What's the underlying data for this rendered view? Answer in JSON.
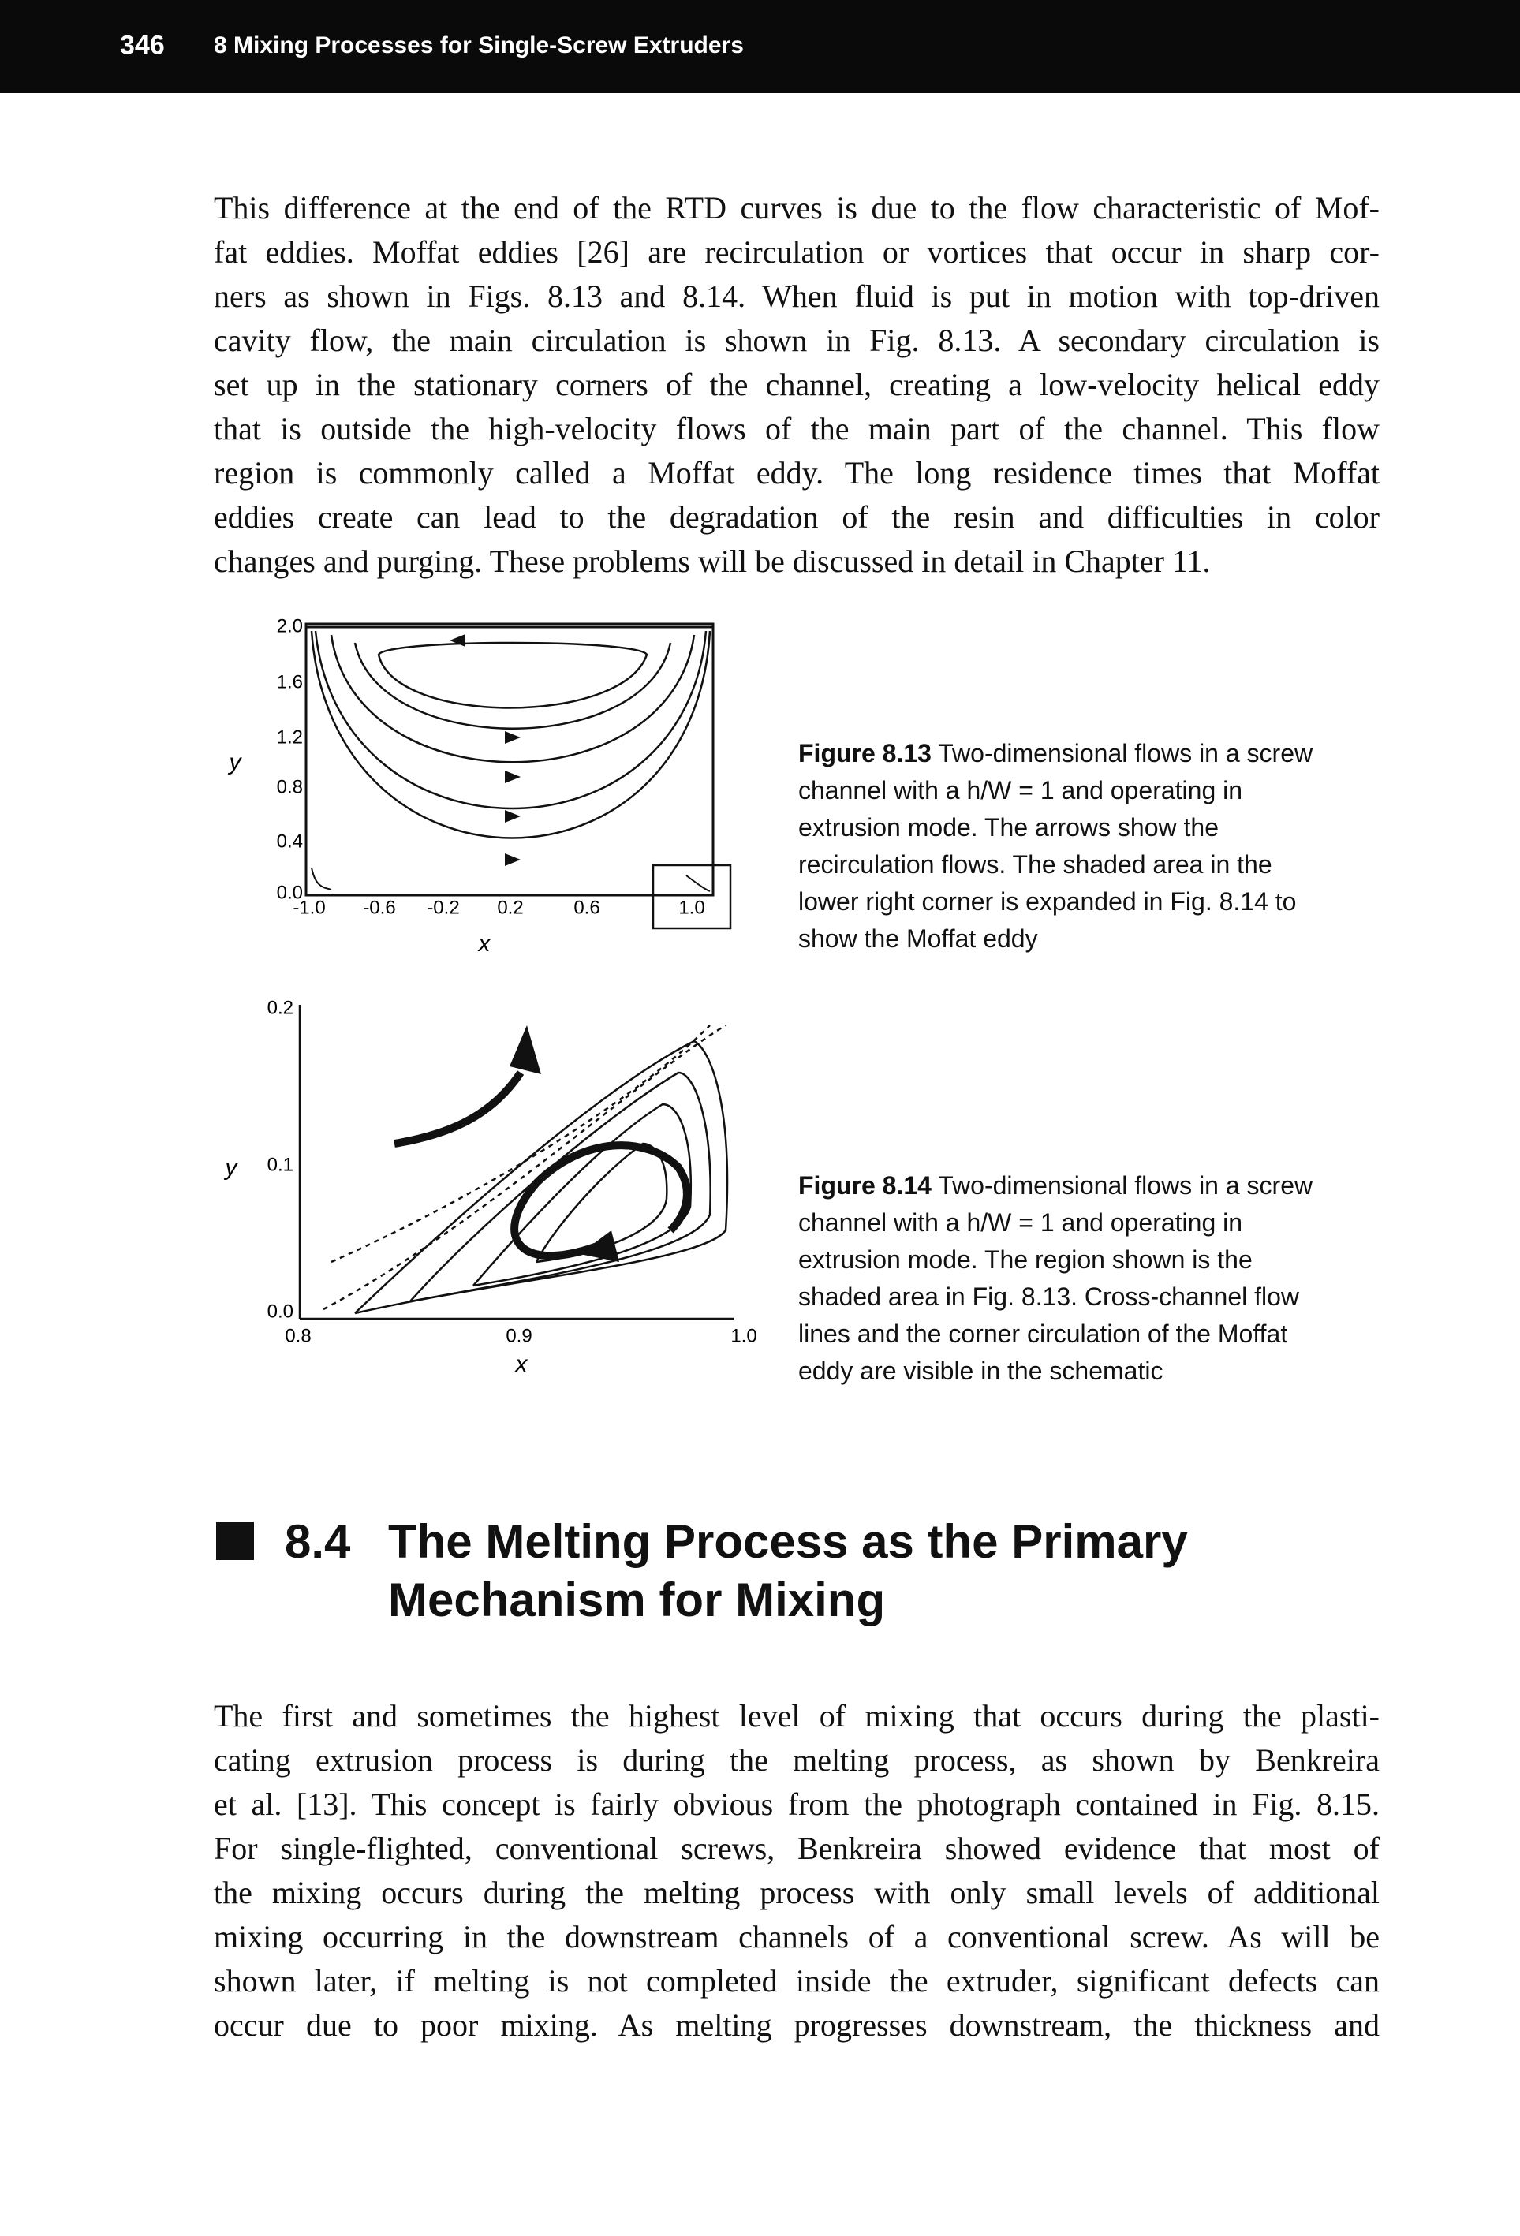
{
  "header": {
    "page_number": "346",
    "chapter": "8 Mixing Processes for Single-Screw Extruders"
  },
  "paragraph_1": [
    "This difference at the end of the RTD curves is due to the flow characteristic of Mof-",
    "fat eddies. Moffat eddies [26] are recirculation or vortices that occur in sharp cor-",
    "ners as shown in Figs. 8.13 and 8.14. When fluid is put in motion with top-driven",
    "cavity flow, the main circulation is shown in Fig. 8.13. A secondary circulation is",
    "set up in the stationary corners of the channel, creating a low-velocity helical eddy",
    "that is outside the high-velocity flows of the main part of the channel. This flow",
    "region is commonly called a Moffat eddy. The long residence times that Moffat",
    "eddies create can lead to the degradation of the resin and difficulties in color",
    "changes and purging. These problems will be discussed in detail in Chapter 11."
  ],
  "figure_1": {
    "y_label": "y",
    "x_label": "x",
    "yticks": [
      "2.0",
      "1.6",
      "1.2",
      "0.8",
      "0.4",
      "0.0"
    ],
    "xticks": [
      "-1.0",
      "-0.6",
      "-0.2",
      "0.2",
      "0.6",
      "1.0"
    ],
    "caption_label": "Figure 8.13",
    "caption": [
      "Two-dimensional flows in a screw",
      "channel with a h/W = 1 and operating in",
      "extrusion mode. The arrows show the",
      "recirculation flows. The shaded area in the",
      "lower right corner is expanded in Fig. 8.14 to",
      "show the Moffat eddy"
    ]
  },
  "figure_2": {
    "y_label": "y",
    "x_label": "x",
    "yticks": [
      "0.2",
      "0.1",
      "0.0"
    ],
    "xticks": [
      "0.8",
      "0.9",
      "1.0"
    ],
    "caption_label": "Figure 8.14",
    "caption": [
      "Two-dimensional flows in a screw",
      "channel with a h/W = 1 and operating in",
      "extrusion mode. The region shown is the",
      "shaded area in Fig. 8.13. Cross-channel flow",
      "lines and the corner circulation of the Moffat",
      "eddy are visible in the schematic"
    ]
  },
  "section": {
    "number": "8.4",
    "title": [
      "The Melting Process as the Primary",
      "Mechanism for Mixing"
    ]
  },
  "paragraph_2": [
    "The first and sometimes the highest level of mixing that occurs during the plasti-",
    "cating extrusion process is during the melting process, as shown by Benkreira",
    "et al. [13]. This concept is fairly obvious from the photograph contained in Fig. 8.15.",
    "For single-flighted, conventional screws, Benkreira showed evidence that most of",
    "the mixing occurs during the melting process with only small levels of additional",
    "mixing occurring in the downstream channels of a conventional screw. As will be",
    "shown later, if melting is not completed inside the extruder, significant defects can",
    "occur due to poor mixing. As melting progresses downstream, the thickness and"
  ]
}
